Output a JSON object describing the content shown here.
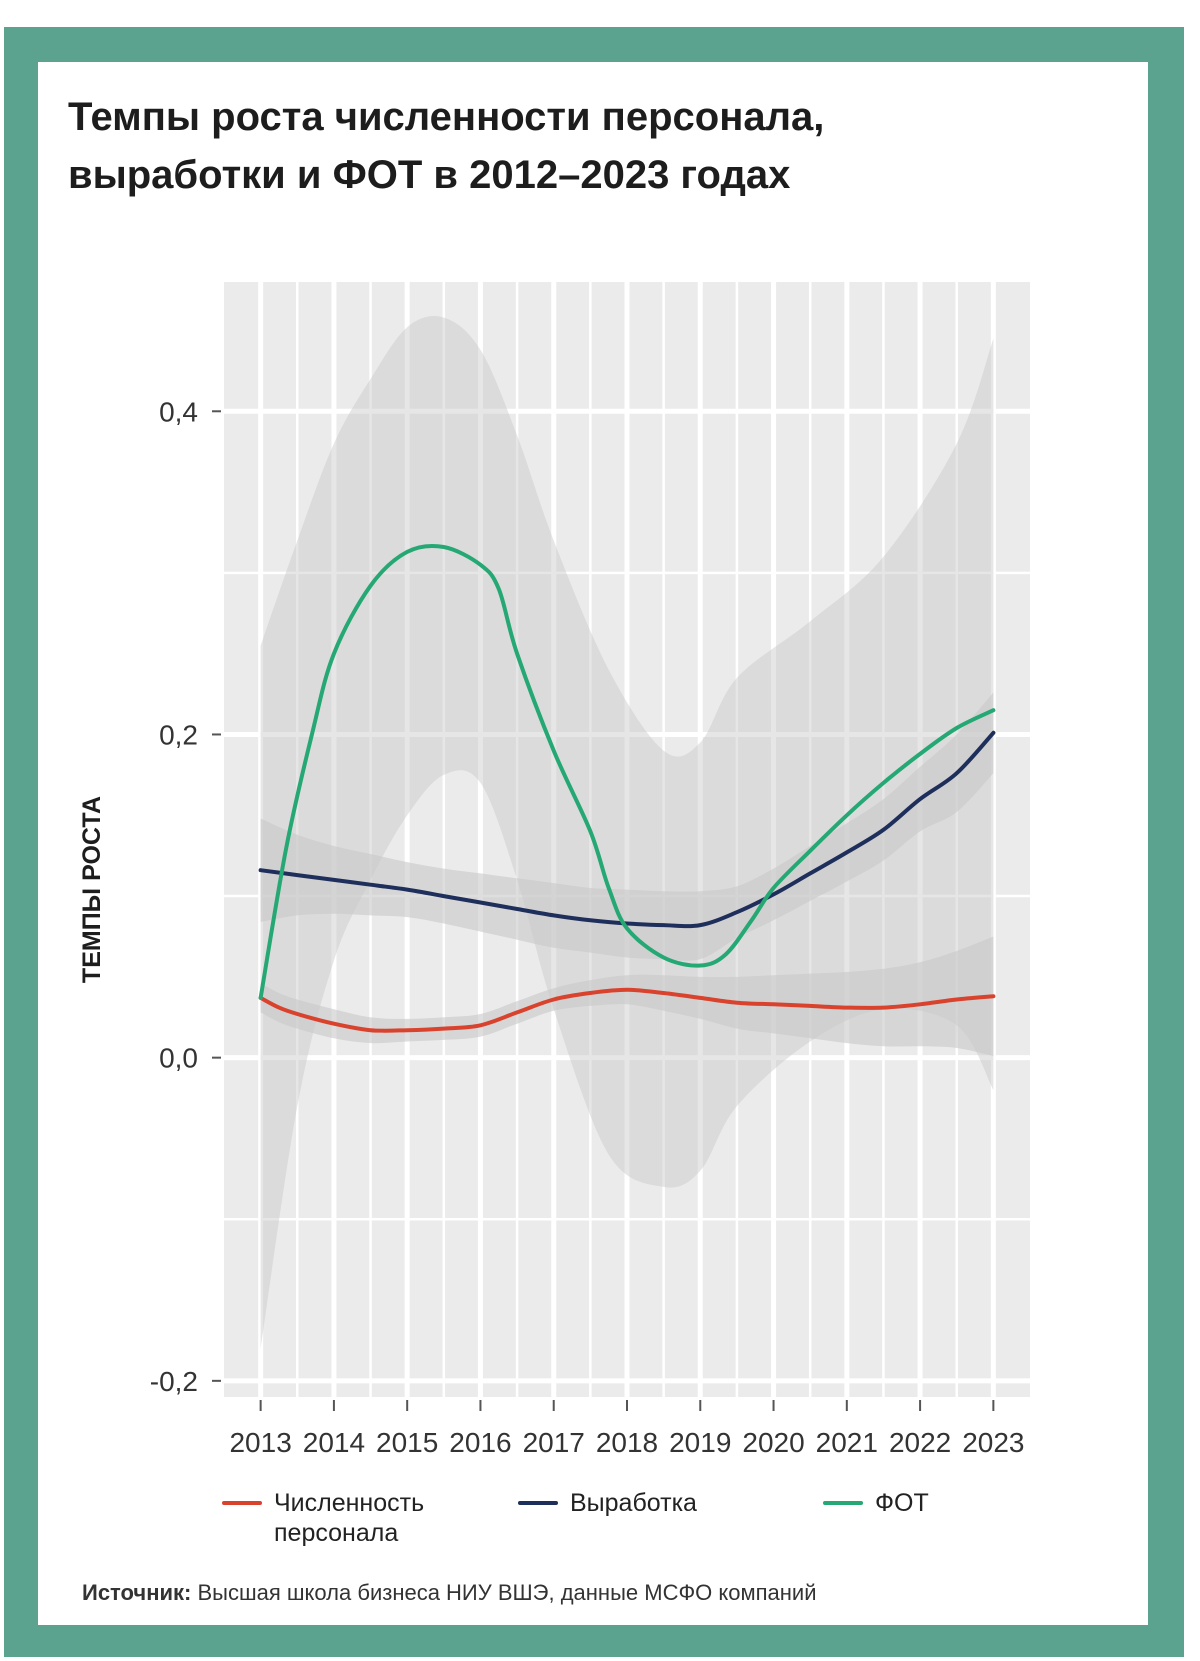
{
  "title_lines": [
    "Темпы роста численности персонала,",
    "выработки и ФОТ в 2012–2023 годах"
  ],
  "source": {
    "label": "Источник:",
    "text": "Высшая школа бизнеса НИУ ВШЭ, данные МСФО компаний"
  },
  "colors": {
    "frame": "#5ca38f",
    "staff": "#d9432e",
    "productivity": "#1f2f5c",
    "payroll": "#26a874",
    "panel": "#ebebeb",
    "band": "#d2d2d2"
  },
  "chart_data": {
    "type": "line",
    "ylabel": "ТЕМПЫ РОСТА",
    "xlabel": "",
    "x": [
      2013,
      2014,
      2015,
      2016,
      2017,
      2018,
      2019,
      2020,
      2021,
      2022,
      2023
    ],
    "x_tick_labels": [
      "2013",
      "2014",
      "2015",
      "2016",
      "2017",
      "2018",
      "2019",
      "2020",
      "2021",
      "2022",
      "2023"
    ],
    "xlim": [
      2012.5,
      2023.5
    ],
    "y_ticks": [
      {
        "value": 0.4,
        "label": "0,4"
      },
      {
        "value": 0.2,
        "label": "0,2"
      },
      {
        "value": 0.0,
        "label": "0,0"
      },
      {
        "value": -0.2,
        "label": "-0,2"
      }
    ],
    "ylim": [
      -0.21,
      0.48
    ],
    "grid": true,
    "legend_position": "bottom",
    "series": [
      {
        "name": "Численность персонала",
        "legend_lines": [
          "Численность",
          "персонала"
        ],
        "color": "#d9432e",
        "x": [
          2013,
          2013.25,
          2013.5,
          2014,
          2014.5,
          2015,
          2015.5,
          2016,
          2016.5,
          2017,
          2017.5,
          2018,
          2018.5,
          2019,
          2019.5,
          2020,
          2020.5,
          2021,
          2021.5,
          2022,
          2022.5,
          2023
        ],
        "values": [
          0.037,
          0.031,
          0.027,
          0.021,
          0.017,
          0.017,
          0.018,
          0.02,
          0.028,
          0.036,
          0.04,
          0.042,
          0.04,
          0.037,
          0.034,
          0.033,
          0.032,
          0.031,
          0.031,
          0.033,
          0.036,
          0.038
        ],
        "band_upper": [
          0.046,
          0.04,
          0.036,
          0.03,
          0.025,
          0.024,
          0.025,
          0.027,
          0.035,
          0.043,
          0.048,
          0.051,
          0.051,
          0.05,
          0.05,
          0.051,
          0.052,
          0.053,
          0.055,
          0.059,
          0.066,
          0.075
        ],
        "band_lower": [
          0.028,
          0.022,
          0.018,
          0.012,
          0.009,
          0.01,
          0.011,
          0.013,
          0.021,
          0.029,
          0.032,
          0.033,
          0.029,
          0.024,
          0.018,
          0.015,
          0.012,
          0.009,
          0.007,
          0.007,
          0.006,
          0.001
        ]
      },
      {
        "name": "Выработка",
        "legend_lines": [
          "Выработка"
        ],
        "color": "#1f2f5c",
        "x": [
          2013,
          2013.5,
          2014,
          2014.5,
          2015,
          2015.5,
          2016,
          2016.5,
          2017,
          2017.5,
          2018,
          2018.5,
          2019,
          2019.5,
          2020,
          2020.5,
          2021,
          2021.5,
          2022,
          2022.5,
          2023
        ],
        "values": [
          0.116,
          0.113,
          0.11,
          0.107,
          0.104,
          0.1,
          0.096,
          0.092,
          0.088,
          0.085,
          0.083,
          0.082,
          0.082,
          0.09,
          0.101,
          0.114,
          0.127,
          0.141,
          0.16,
          0.176,
          0.201
        ],
        "band_upper": [
          0.148,
          0.138,
          0.131,
          0.126,
          0.121,
          0.117,
          0.114,
          0.111,
          0.108,
          0.105,
          0.104,
          0.103,
          0.103,
          0.106,
          0.117,
          0.131,
          0.145,
          0.16,
          0.18,
          0.2,
          0.226
        ],
        "band_lower": [
          0.084,
          0.088,
          0.089,
          0.088,
          0.087,
          0.083,
          0.078,
          0.073,
          0.068,
          0.065,
          0.062,
          0.061,
          0.061,
          0.074,
          0.085,
          0.097,
          0.109,
          0.122,
          0.14,
          0.152,
          0.176
        ]
      },
      {
        "name": "ФОТ",
        "legend_lines": [
          "ФОТ"
        ],
        "color": "#26a874",
        "x": [
          2013,
          2013.35,
          2013.7,
          2014,
          2014.5,
          2015,
          2015.5,
          2016,
          2016.25,
          2016.5,
          2017,
          2017.5,
          2017.75,
          2018,
          2018.5,
          2019,
          2019.35,
          2019.7,
          2020,
          2020.5,
          2021,
          2021.5,
          2022,
          2022.5,
          2023
        ],
        "values": [
          0.037,
          0.13,
          0.2,
          0.25,
          0.292,
          0.313,
          0.316,
          0.305,
          0.29,
          0.25,
          0.19,
          0.14,
          0.105,
          0.08,
          0.062,
          0.057,
          0.064,
          0.085,
          0.105,
          0.128,
          0.15,
          0.17,
          0.188,
          0.204,
          0.215
        ]
      }
    ],
    "payroll_band_upper": [
      0.255,
      0.32,
      0.38,
      0.42,
      0.452,
      0.458,
      0.438,
      0.385,
      0.32,
      0.24,
      0.19,
      0.195,
      0.235,
      0.27,
      0.31,
      0.38,
      0.445
    ],
    "payroll_band_lower": [
      -0.18,
      -0.03,
      0.06,
      0.11,
      0.15,
      0.175,
      0.17,
      0.11,
      0.03,
      -0.06,
      -0.08,
      -0.07,
      -0.03,
      0.01,
      0.03,
      0.02,
      -0.02
    ],
    "payroll_band_x": [
      2013,
      2013.5,
      2014,
      2014.5,
      2015,
      2015.5,
      2016,
      2016.5,
      2017,
      2017.75,
      2018.5,
      2019,
      2019.5,
      2020.5,
      2021.5,
      2022.5,
      2023
    ]
  }
}
